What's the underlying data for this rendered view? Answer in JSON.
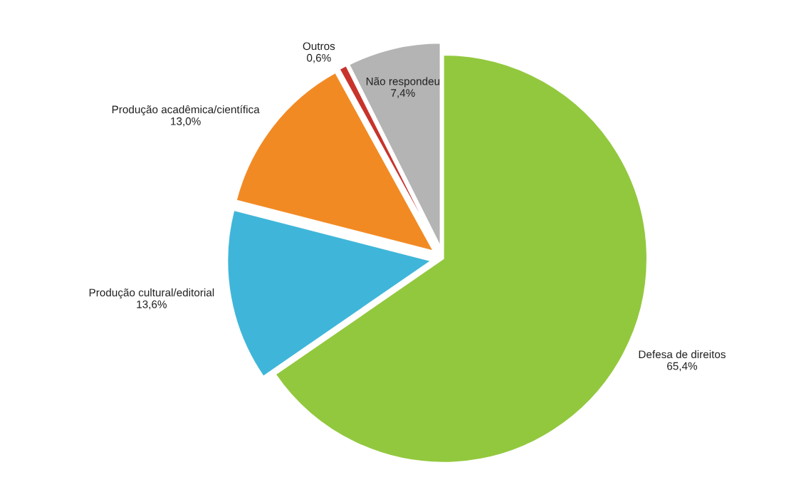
{
  "chart_data": {
    "type": "pie",
    "categories": [
      "Defesa de direitos",
      "Produção cultural/editorial",
      "Produção acadêmica/científica",
      "Outros",
      "Não respondeu"
    ],
    "values": [
      65.4,
      13.6,
      13.0,
      0.6,
      7.4
    ],
    "value_labels": [
      "65,4%",
      "13,6%",
      "13,0%",
      "0,6%",
      "7,4%"
    ],
    "colors": [
      "#92c83e",
      "#3fb6d9",
      "#f28a24",
      "#c8332b",
      "#b4b4b4"
    ],
    "legend": false
  }
}
